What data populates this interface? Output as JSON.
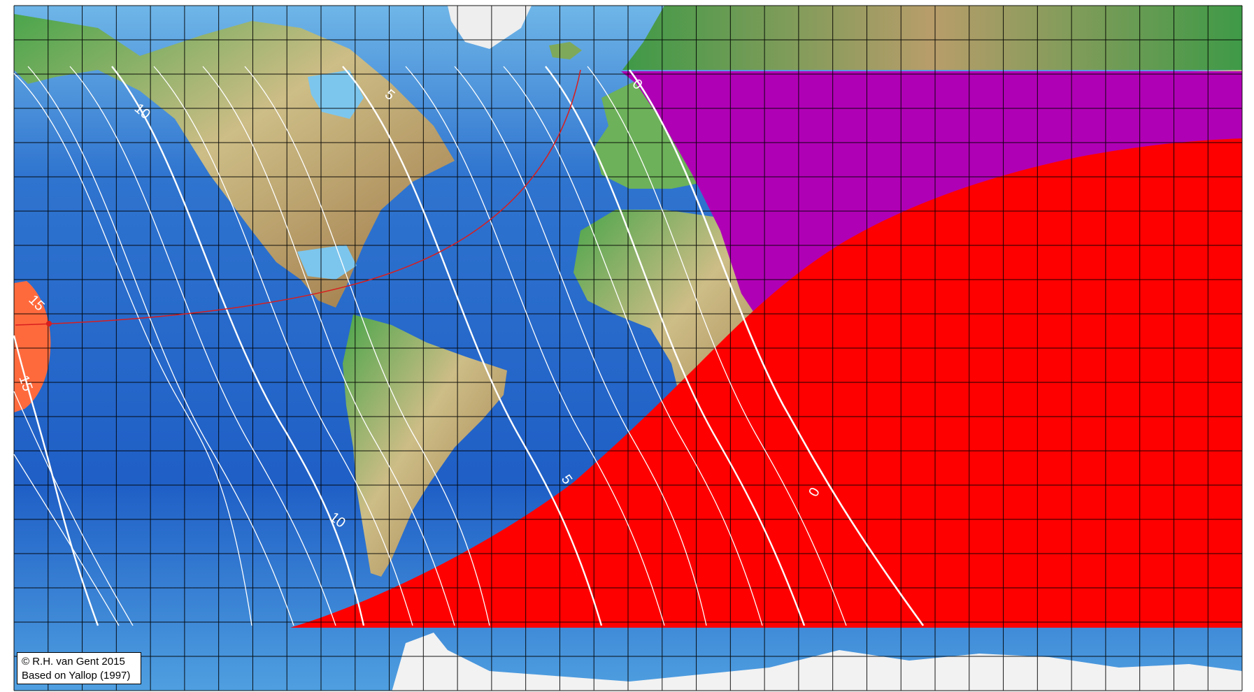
{
  "map": {
    "projection": "equirectangular world map",
    "graticule": "latitude/longitude grid lines",
    "colors": {
      "ocean_deep": "#1f5fc6",
      "ocean_shallow": "#7cc6ee",
      "land_low": "#4aa54b",
      "land_mid": "#cdbd86",
      "land_high": "#9c7444",
      "ice": "#f2f2f2",
      "zone_purple": "#b000b5",
      "zone_red": "#ff0000",
      "zone_orange": "#ff6a3d",
      "contour_lines": "#ffffff",
      "path_line": "#d81e1e",
      "grid_lines": "#000000"
    }
  },
  "overlays": {
    "zones": [
      {
        "name": "zone-purple",
        "color": "#b000b5"
      },
      {
        "name": "zone-red",
        "color": "#ff0000"
      },
      {
        "name": "zone-orange",
        "color": "#ff6a3d"
      }
    ],
    "contour_labels": [
      "10",
      "5",
      "0",
      "5",
      "10",
      "0",
      "5",
      "10",
      "15"
    ],
    "contour_labels_orange": [
      "15"
    ]
  },
  "credit": {
    "line1": "© R.H. van Gent 2015",
    "line2": "Based on Yallop (1997)"
  }
}
